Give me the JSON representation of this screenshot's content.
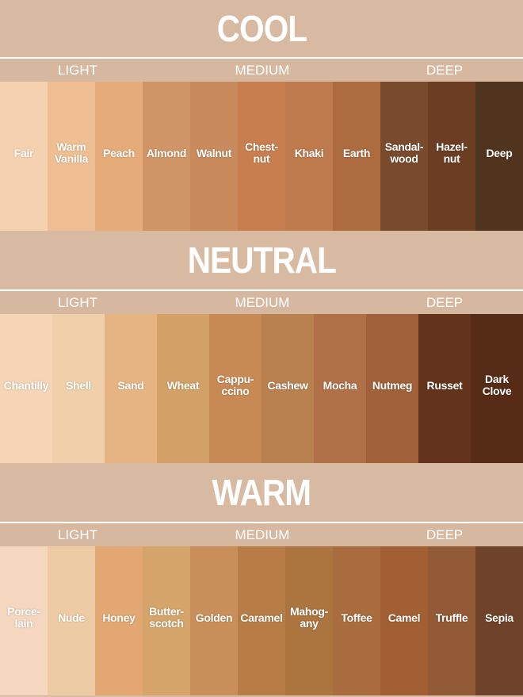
{
  "background_color": "#d8baa3",
  "sections": [
    {
      "title": "COOL",
      "levels": [
        "LIGHT",
        "MEDIUM",
        "DEEP"
      ],
      "shades": [
        {
          "name": "Fair",
          "color": "#f6d1b0"
        },
        {
          "name": "Warm\nVanilla",
          "color": "#efbf93"
        },
        {
          "name": "Peach",
          "color": "#e5ac79"
        },
        {
          "name": "Almond",
          "color": "#cf9566"
        },
        {
          "name": "Walnut",
          "color": "#c98a5d"
        },
        {
          "name": "Chest-\nnut",
          "color": "#c87e4f"
        },
        {
          "name": "Khaki",
          "color": "#be7a4d"
        },
        {
          "name": "Earth",
          "color": "#ac6c40"
        },
        {
          "name": "Sandal-\nwood",
          "color": "#7a4a2c"
        },
        {
          "name": "Hazel-\nnut",
          "color": "#6b3d23"
        },
        {
          "name": "Deep",
          "color": "#50341d"
        }
      ]
    },
    {
      "title": "NEUTRAL",
      "levels": [
        "LIGHT",
        "MEDIUM",
        "DEEP"
      ],
      "shades": [
        {
          "name": "Chantilly",
          "color": "#f5d5b5"
        },
        {
          "name": "Shell",
          "color": "#efd0aa"
        },
        {
          "name": "Sand",
          "color": "#e6b482"
        },
        {
          "name": "Wheat",
          "color": "#d3a067"
        },
        {
          "name": "Cappu-\nccino",
          "color": "#c88a55"
        },
        {
          "name": "Cashew",
          "color": "#b98150"
        },
        {
          "name": "Mocha",
          "color": "#b07048"
        },
        {
          "name": "Nutmeg",
          "color": "#a0603a"
        },
        {
          "name": "Russet",
          "color": "#63341b"
        },
        {
          "name": "Dark\nClove",
          "color": "#572c17"
        }
      ]
    },
    {
      "title": "WARM",
      "levels": [
        "LIGHT",
        "MEDIUM",
        "DEEP"
      ],
      "shades": [
        {
          "name": "Porce-\nlain",
          "color": "#f5d7bf"
        },
        {
          "name": "Nude",
          "color": "#edcba4"
        },
        {
          "name": "Honey",
          "color": "#e2a772"
        },
        {
          "name": "Butter-\nscotch",
          "color": "#d5a46b"
        },
        {
          "name": "Golden",
          "color": "#c88f5a"
        },
        {
          "name": "Caramel",
          "color": "#b87d47"
        },
        {
          "name": "Mahog-\nany",
          "color": "#ac753f"
        },
        {
          "name": "Toffee",
          "color": "#a86c3e"
        },
        {
          "name": "Camel",
          "color": "#a35f34"
        },
        {
          "name": "Truffle",
          "color": "#935a37"
        },
        {
          "name": "Sepia",
          "color": "#6e4329"
        }
      ]
    }
  ]
}
